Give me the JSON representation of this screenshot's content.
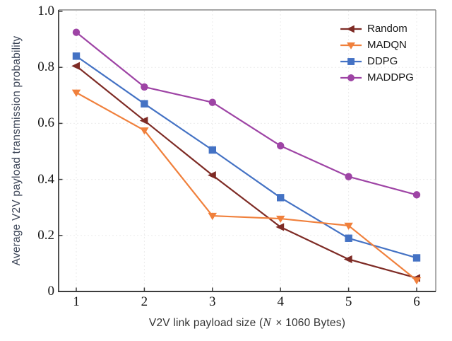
{
  "chart_data": {
    "type": "line",
    "title": "",
    "xlabel": {
      "prefix": "V2V link payload size (",
      "var": "N",
      "suffix": " × 1060 Bytes)"
    },
    "ylabel": "Average V2V payload transmission probability",
    "x": [
      1,
      2,
      3,
      4,
      5,
      6
    ],
    "xlim": [
      1,
      6
    ],
    "ylim": [
      0,
      1
    ],
    "grid": "faint dashed",
    "legend_position": "top-right inside",
    "xticks": [
      {
        "v": 1,
        "label": "1"
      },
      {
        "v": 2,
        "label": "2"
      },
      {
        "v": 3,
        "label": "3"
      },
      {
        "v": 4,
        "label": "4"
      },
      {
        "v": 5,
        "label": "5"
      },
      {
        "v": 6,
        "label": "6"
      }
    ],
    "yticks": [
      {
        "v": 0,
        "label": "0"
      },
      {
        "v": 0.2,
        "label": "0.2"
      },
      {
        "v": 0.4,
        "label": "0.4"
      },
      {
        "v": 0.6,
        "label": "0.6"
      },
      {
        "v": 0.8,
        "label": "0.8"
      },
      {
        "v": 1.0,
        "label": "1.0"
      }
    ],
    "series": [
      {
        "name": "Random",
        "color": "#7E2B25",
        "marker": "triangle-left",
        "values": [
          0.805,
          0.61,
          0.415,
          0.23,
          0.115,
          0.048
        ]
      },
      {
        "name": "MADQN",
        "color": "#F0803C",
        "marker": "triangle-down",
        "values": [
          0.71,
          0.575,
          0.27,
          0.26,
          0.235,
          0.04
        ]
      },
      {
        "name": "DDPG",
        "color": "#4472C4",
        "marker": "square",
        "values": [
          0.84,
          0.67,
          0.505,
          0.335,
          0.19,
          0.12
        ]
      },
      {
        "name": "MADDPG",
        "color": "#9E44A5",
        "marker": "circle",
        "values": [
          0.925,
          0.73,
          0.675,
          0.52,
          0.41,
          0.345
        ]
      }
    ],
    "draw_order": [
      2,
      0,
      1,
      3
    ],
    "colors": {
      "axis_spine": "#3c3c3c",
      "frame_top_right": "#8a8a8a",
      "gridline": "#ebebeb",
      "tick_text": "#161616",
      "y_title": "#3c4557",
      "x_title": "#333333"
    }
  }
}
